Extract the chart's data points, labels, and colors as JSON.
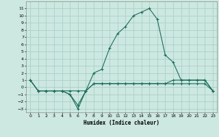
{
  "xlabel": "Humidex (Indice chaleur)",
  "x_values": [
    0,
    1,
    2,
    3,
    4,
    5,
    6,
    7,
    8,
    9,
    10,
    11,
    12,
    13,
    14,
    15,
    16,
    17,
    18,
    19,
    20,
    21,
    22,
    23
  ],
  "line1_y": [
    1,
    -0.5,
    -0.5,
    -0.5,
    -0.5,
    -1,
    -2.5,
    -0.5,
    2,
    2.5,
    5.5,
    7.5,
    8.5,
    10,
    10.5,
    11,
    9.5,
    4.5,
    3.5,
    1,
    1,
    1,
    1,
    -0.5
  ],
  "line2_y": [
    1,
    -0.5,
    -0.5,
    -0.5,
    -0.5,
    -1,
    -3,
    -0.5,
    0.5,
    0.5,
    0.5,
    0.5,
    0.5,
    0.5,
    0.5,
    0.5,
    0.5,
    0.5,
    1,
    1,
    1,
    1,
    1,
    -0.5
  ],
  "line3_y": [
    1,
    -0.5,
    -0.5,
    -0.5,
    -0.5,
    -0.5,
    -0.5,
    -0.5,
    0.5,
    0.5,
    0.5,
    0.5,
    0.5,
    0.5,
    0.5,
    0.5,
    0.5,
    0.5,
    0.5,
    0.5,
    0.5,
    0.5,
    0.5,
    -0.5
  ],
  "bg_color": "#cce8e0",
  "grid_color": "#aacfc8",
  "line_color": "#1a6b5a",
  "ylim": [
    -3.5,
    12
  ],
  "xlim": [
    -0.5,
    23.5
  ],
  "yticks": [
    -3,
    -2,
    -1,
    0,
    1,
    2,
    3,
    4,
    5,
    6,
    7,
    8,
    9,
    10,
    11
  ],
  "xticks": [
    0,
    1,
    2,
    3,
    4,
    5,
    6,
    7,
    8,
    9,
    10,
    11,
    12,
    13,
    14,
    15,
    16,
    17,
    18,
    19,
    20,
    21,
    22,
    23
  ]
}
